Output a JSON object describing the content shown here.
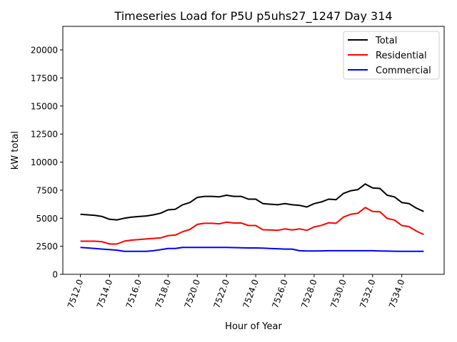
{
  "chart_data": {
    "type": "line",
    "title": "Timeseries Load for P5U p5uhs27_1247  Day 314",
    "xlabel": "Hour of Year",
    "ylabel": "kW total",
    "xlim": [
      7510.8,
      7536.9
    ],
    "ylim": [
      0,
      22100
    ],
    "grid": false,
    "legend_placement": "top-right",
    "x_start": 7512,
    "x_step": 0.5,
    "xticks": [
      7512,
      7514,
      7516,
      7518,
      7520,
      7522,
      7524,
      7526,
      7528,
      7530,
      7532,
      7534
    ],
    "xtick_labels": [
      "7512.0",
      "7514.0",
      "7516.0",
      "7518.0",
      "7520.0",
      "7522.0",
      "7524.0",
      "7526.0",
      "7528.0",
      "7530.0",
      "7532.0",
      "7534.0"
    ],
    "yticks": [
      0,
      2500,
      5000,
      7500,
      10000,
      12500,
      15000,
      17500,
      20000
    ],
    "ytick_labels": [
      "0",
      "2500",
      "5000",
      "7500",
      "10000",
      "12500",
      "15000",
      "17500",
      "20000"
    ],
    "series": [
      {
        "name": "Total",
        "color": "#000000",
        "values": [
          5350,
          5300,
          5250,
          5150,
          4900,
          4850,
          5000,
          5100,
          5150,
          5200,
          5300,
          5450,
          5750,
          5800,
          6200,
          6400,
          6850,
          6950,
          6950,
          6900,
          7050,
          6950,
          6950,
          6700,
          6700,
          6300,
          6250,
          6200,
          6300,
          6200,
          6150,
          6000,
          6300,
          6450,
          6700,
          6650,
          7200,
          7450,
          7550,
          8050,
          7700,
          7650,
          7050,
          6900,
          6400,
          6300,
          5900,
          5600
        ]
      },
      {
        "name": "Residential",
        "color": "#ff0000",
        "values": [
          2950,
          2950,
          2950,
          2900,
          2700,
          2700,
          2950,
          3050,
          3100,
          3150,
          3200,
          3250,
          3450,
          3500,
          3800,
          4000,
          4450,
          4550,
          4550,
          4500,
          4650,
          4570,
          4580,
          4350,
          4350,
          3970,
          3950,
          3920,
          4050,
          3950,
          4050,
          3920,
          4220,
          4360,
          4600,
          4550,
          5100,
          5350,
          5450,
          5950,
          5600,
          5570,
          4980,
          4840,
          4350,
          4250,
          3850,
          3550
        ]
      },
      {
        "name": "Commercial",
        "color": "#0000ff",
        "values": [
          2400,
          2350,
          2300,
          2250,
          2200,
          2150,
          2050,
          2050,
          2050,
          2050,
          2100,
          2200,
          2300,
          2300,
          2400,
          2400,
          2400,
          2400,
          2400,
          2400,
          2400,
          2380,
          2370,
          2350,
          2350,
          2330,
          2300,
          2280,
          2250,
          2250,
          2100,
          2080,
          2080,
          2090,
          2100,
          2100,
          2100,
          2100,
          2100,
          2100,
          2100,
          2080,
          2070,
          2060,
          2050,
          2050,
          2050,
          2050
        ]
      }
    ]
  }
}
